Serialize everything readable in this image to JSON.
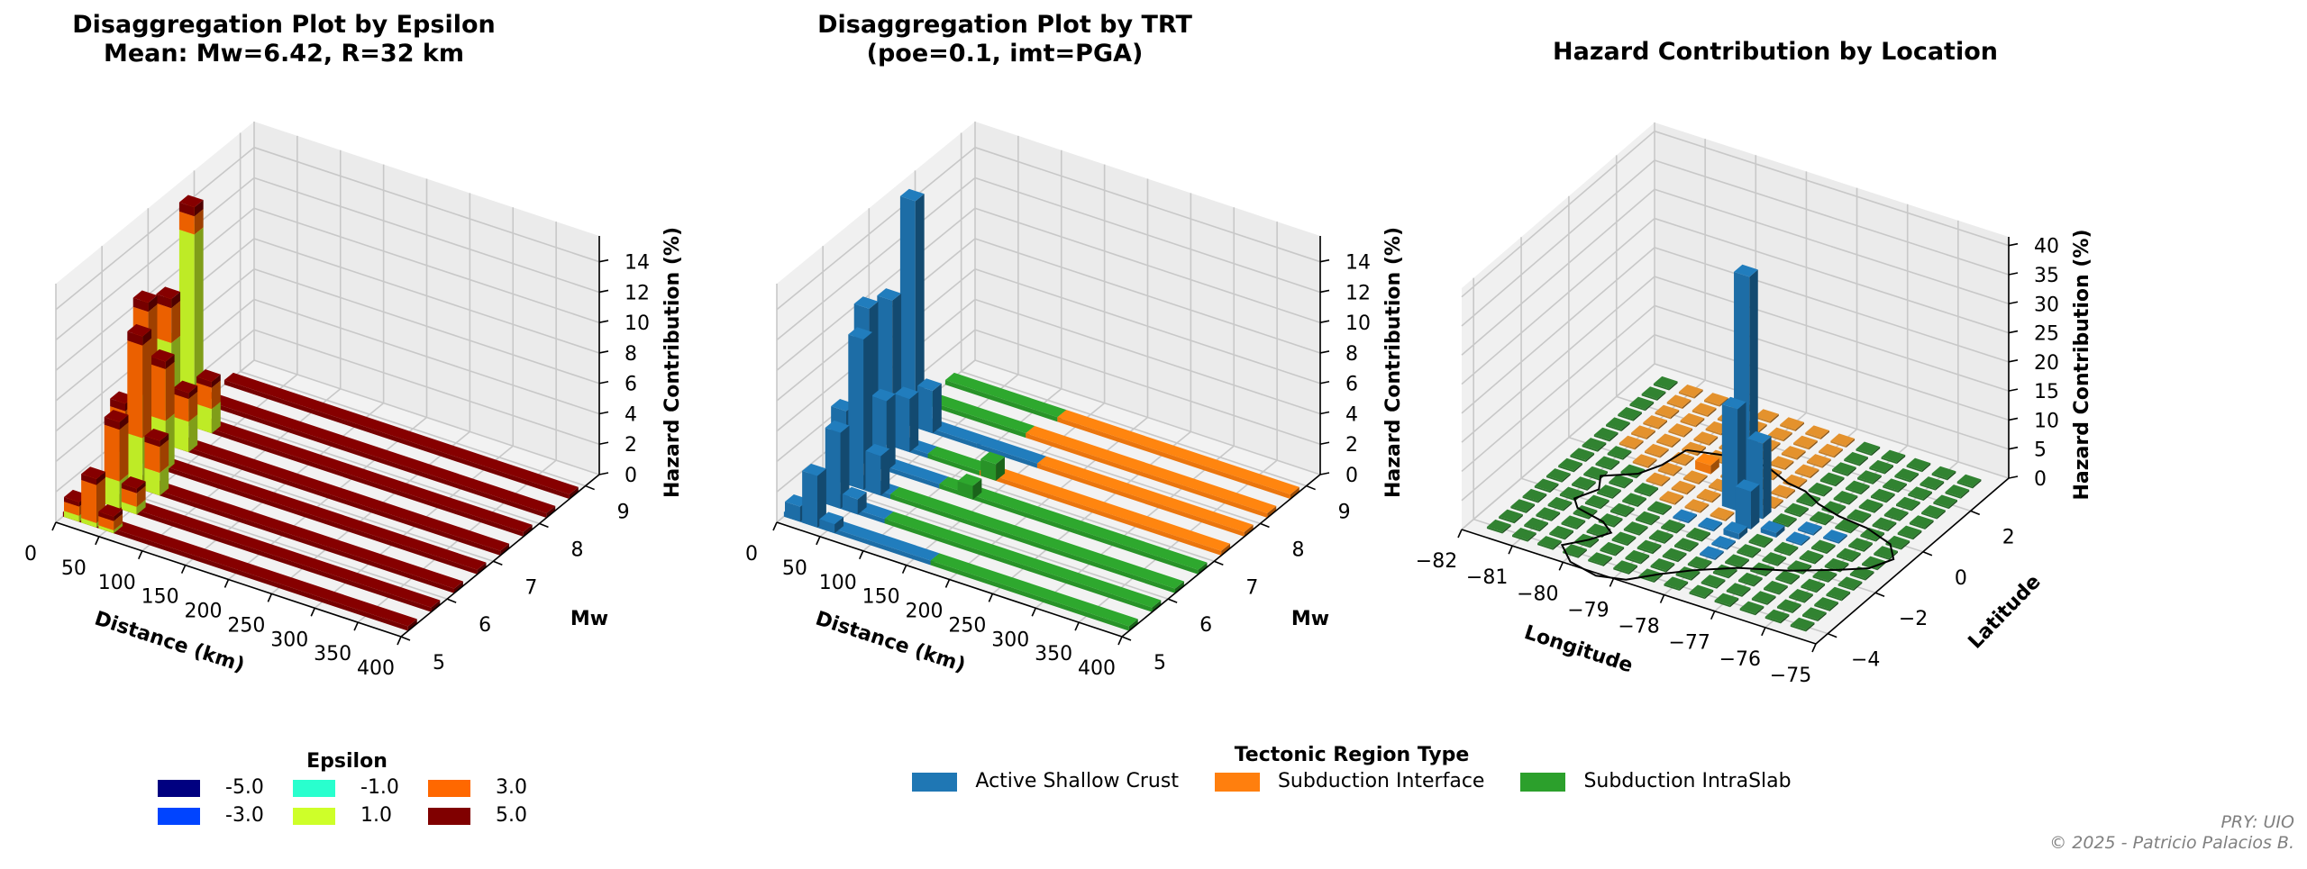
{
  "chart_data": [
    {
      "type": "bar3d",
      "title": "Disaggregation Plot by Epsilon",
      "subtitle": "Mean: Mw=6.42, R=32 km",
      "xlabel": "Distance (km)",
      "ylabel": "Mw",
      "zlabel": "Hazard Contribution (%)",
      "xticks": [
        "0",
        "50",
        "100",
        "150",
        "200",
        "250",
        "300",
        "350",
        "400"
      ],
      "yticks": [
        "5",
        "6",
        "7",
        "8",
        "9"
      ],
      "zticks": [
        "0",
        "2",
        "4",
        "6",
        "8",
        "10",
        "12",
        "14"
      ],
      "xlim": [
        0,
        400
      ],
      "ylim": [
        5,
        9.3
      ],
      "zlim": [
        0,
        15.7
      ],
      "legend_title": "Epsilon",
      "legend": [
        {
          "label": "-5.0",
          "color": "#000080"
        },
        {
          "label": "-3.0",
          "color": "#0044ff"
        },
        {
          "label": "-1.0",
          "color": "#29ffce"
        },
        {
          "label": "1.0",
          "color": "#ceff29"
        },
        {
          "label": "3.0",
          "color": "#ff6800"
        },
        {
          "label": "5.0",
          "color": "#800000"
        }
      ],
      "mw_rows": [
        5.25,
        5.75,
        6.25,
        6.75,
        7.25,
        7.75,
        8.25,
        8.75
      ],
      "bars": [
        {
          "r": 10,
          "mw": 5.25,
          "eps1": 0.4,
          "eps3": 0.6,
          "eps5": 0.3
        },
        {
          "r": 30,
          "mw": 5.25,
          "eps1": 0.3,
          "eps3": 2.5,
          "eps5": 0.4
        },
        {
          "r": 50,
          "mw": 5.25,
          "eps1": 0.2,
          "eps3": 0.6,
          "eps5": 0.3
        },
        {
          "r": 10,
          "mw": 5.75,
          "eps1": 0.6,
          "eps3": 0.4,
          "eps5": 0.3
        },
        {
          "r": 30,
          "mw": 5.75,
          "eps1": 1.8,
          "eps3": 3.4,
          "eps5": 0.5
        },
        {
          "r": 50,
          "mw": 5.75,
          "eps1": 0.5,
          "eps3": 0.9,
          "eps5": 0.3
        },
        {
          "r": 10,
          "mw": 6.25,
          "eps1": 2.0,
          "eps3": 2.8,
          "eps5": 0.5
        },
        {
          "r": 30,
          "mw": 6.25,
          "eps1": 3.4,
          "eps3": 6.1,
          "eps5": 0.6
        },
        {
          "r": 50,
          "mw": 6.25,
          "eps1": 1.5,
          "eps3": 1.7,
          "eps5": 0.4
        },
        {
          "r": 10,
          "mw": 6.75,
          "eps1": 4.5,
          "eps3": 5.6,
          "eps5": 0.6
        },
        {
          "r": 30,
          "mw": 6.75,
          "eps1": 3.3,
          "eps3": 3.4,
          "eps5": 0.5
        },
        {
          "r": 10,
          "mw": 7.25,
          "eps1": 6.8,
          "eps3": 2.3,
          "eps5": 0.6
        },
        {
          "r": 30,
          "mw": 7.25,
          "eps1": 2.0,
          "eps3": 1.5,
          "eps5": 0.4
        },
        {
          "r": 10,
          "mw": 7.75,
          "eps1": 12.7,
          "eps3": 1.2,
          "eps5": 0.6
        },
        {
          "r": 30,
          "mw": 7.75,
          "eps1": 1.6,
          "eps3": 1.4,
          "eps5": 0.4
        }
      ],
      "floor_value": 0.3
    },
    {
      "type": "bar3d",
      "title": "Disaggregation Plot by TRT",
      "subtitle": "(poe=0.1, imt=PGA)",
      "xlabel": "Distance (km)",
      "ylabel": "Mw",
      "zlabel": "Hazard Contribution (%)",
      "xticks": [
        "0",
        "50",
        "100",
        "150",
        "200",
        "250",
        "300",
        "350",
        "400"
      ],
      "yticks": [
        "5",
        "6",
        "7",
        "8",
        "9"
      ],
      "zticks": [
        "0",
        "2",
        "4",
        "6",
        "8",
        "10",
        "12",
        "14"
      ],
      "xlim": [
        0,
        400
      ],
      "ylim": [
        5,
        9.3
      ],
      "zlim": [
        0,
        15.7
      ],
      "legend_title": "Tectonic Region Type",
      "legend": [
        {
          "label": "Active Shallow Crust",
          "color": "#1f77b4"
        },
        {
          "label": "Subduction Interface",
          "color": "#ff7f0e"
        },
        {
          "label": "Subduction IntraSlab",
          "color": "#2ca02c"
        }
      ],
      "bars": [
        {
          "r": 10,
          "mw": 5.25,
          "trt": "Active Shallow Crust",
          "value": 1.0
        },
        {
          "r": 30,
          "mw": 5.25,
          "trt": "Active Shallow Crust",
          "value": 3.4
        },
        {
          "r": 50,
          "mw": 5.25,
          "trt": "Active Shallow Crust",
          "value": 0.6
        },
        {
          "r": 10,
          "mw": 5.75,
          "trt": "Active Shallow Crust",
          "value": 1.6
        },
        {
          "r": 30,
          "mw": 5.75,
          "trt": "Active Shallow Crust",
          "value": 5.0
        },
        {
          "r": 50,
          "mw": 5.75,
          "trt": "Active Shallow Crust",
          "value": 1.0
        },
        {
          "r": 10,
          "mw": 6.25,
          "trt": "Active Shallow Crust",
          "value": 4.8
        },
        {
          "r": 30,
          "mw": 6.25,
          "trt": "Active Shallow Crust",
          "value": 9.9
        },
        {
          "r": 50,
          "mw": 6.25,
          "trt": "Active Shallow Crust",
          "value": 2.6
        },
        {
          "r": 10,
          "mw": 6.75,
          "trt": "Active Shallow Crust",
          "value": 10.3
        },
        {
          "r": 30,
          "mw": 6.75,
          "trt": "Active Shallow Crust",
          "value": 4.6
        },
        {
          "r": 10,
          "mw": 7.25,
          "trt": "Active Shallow Crust",
          "value": 9.6
        },
        {
          "r": 30,
          "mw": 7.25,
          "trt": "Active Shallow Crust",
          "value": 3.5
        },
        {
          "r": 10,
          "mw": 7.75,
          "trt": "Active Shallow Crust",
          "value": 14.9
        },
        {
          "r": 30,
          "mw": 7.75,
          "trt": "Active Shallow Crust",
          "value": 2.8
        },
        {
          "r": 130,
          "mw": 6.75,
          "trt": "Subduction IntraSlab",
          "value": 0.9
        },
        {
          "r": 130,
          "mw": 7.25,
          "trt": "Subduction IntraSlab",
          "value": 1.1
        }
      ],
      "row_segments": [
        {
          "mw": 5.25,
          "segments": [
            {
              "from": 0,
              "to": 170,
              "trt": "Active Shallow Crust"
            },
            {
              "from": 170,
              "to": 400,
              "trt": "Subduction IntraSlab"
            }
          ]
        },
        {
          "mw": 5.75,
          "segments": [
            {
              "from": 0,
              "to": 90,
              "trt": "Active Shallow Crust"
            },
            {
              "from": 90,
              "to": 400,
              "trt": "Subduction IntraSlab"
            }
          ]
        },
        {
          "mw": 6.25,
          "segments": [
            {
              "from": 0,
              "to": 70,
              "trt": "Active Shallow Crust"
            },
            {
              "from": 70,
              "to": 400,
              "trt": "Subduction IntraSlab"
            }
          ]
        },
        {
          "mw": 6.75,
          "segments": [
            {
              "from": 0,
              "to": 100,
              "trt": "Active Shallow Crust"
            },
            {
              "from": 100,
              "to": 400,
              "trt": "Subduction IntraSlab"
            }
          ]
        },
        {
          "mw": 7.25,
          "segments": [
            {
              "from": 0,
              "to": 60,
              "trt": "Active Shallow Crust"
            },
            {
              "from": 60,
              "to": 120,
              "trt": "Subduction IntraSlab"
            },
            {
              "from": 120,
              "to": 400,
              "trt": "Subduction Interface"
            }
          ]
        },
        {
          "mw": 7.75,
          "segments": [
            {
              "from": 0,
              "to": 90,
              "trt": "Active Shallow Crust"
            },
            {
              "from": 90,
              "to": 160,
              "trt": "Active Shallow Crust"
            },
            {
              "from": 160,
              "to": 400,
              "trt": "Subduction Interface"
            }
          ]
        },
        {
          "mw": 8.25,
          "segments": [
            {
              "from": 0,
              "to": 120,
              "trt": "Subduction IntraSlab"
            },
            {
              "from": 120,
              "to": 400,
              "trt": "Subduction Interface"
            }
          ]
        },
        {
          "mw": 8.75,
          "segments": [
            {
              "from": 0,
              "to": 130,
              "trt": "Subduction IntraSlab"
            },
            {
              "from": 130,
              "to": 400,
              "trt": "Subduction Interface"
            }
          ]
        }
      ],
      "floor_value": 0.3
    },
    {
      "type": "bar3d",
      "title": "Hazard Contribution by Location",
      "xlabel": "Longitude",
      "ylabel": "Latitude",
      "zlabel": "Hazard Contribution (%)",
      "xticks": [
        "−82",
        "−81",
        "−80",
        "−79",
        "−78",
        "−77",
        "−76",
        "−75"
      ],
      "yticks": [
        "−4",
        "−2",
        "0",
        "2"
      ],
      "zticks": [
        "0",
        "5",
        "10",
        "15",
        "20",
        "25",
        "30",
        "35",
        "40"
      ],
      "xlim": [
        -82,
        -75
      ],
      "ylim": [
        -4.5,
        3.6
      ],
      "zlim": [
        0,
        41.5
      ],
      "grid_lon": [
        -81.5,
        -75.5
      ],
      "grid_lat": [
        -4.0,
        3.0
      ],
      "grid_step": 0.5,
      "peaks": [
        {
          "lon": -78.5,
          "lat": 0.0,
          "trt": "Active Shallow Crust",
          "value": 38.5
        },
        {
          "lon": -78.5,
          "lat": -0.5,
          "trt": "Active Shallow Crust",
          "value": 17.5
        },
        {
          "lon": -78.0,
          "lat": -0.5,
          "trt": "Active Shallow Crust",
          "value": 13.0
        },
        {
          "lon": -78.0,
          "lat": -1.0,
          "trt": "Active Shallow Crust",
          "value": 6.5
        },
        {
          "lon": -78.0,
          "lat": -1.5,
          "trt": "Active Shallow Crust",
          "value": 1.0
        },
        {
          "lon": -77.5,
          "lat": -1.0,
          "trt": "Active Shallow Crust",
          "value": 0.8
        },
        {
          "lon": -79.5,
          "lat": 0.5,
          "trt": "Subduction Interface",
          "value": 1.5
        }
      ],
      "active_cells": [
        [
          -79.0,
          -1.5
        ],
        [
          -78.5,
          -1.5
        ],
        [
          -78.0,
          -2.0
        ],
        [
          -77.0,
          -1.0
        ],
        [
          -76.5,
          -0.5
        ],
        [
          -77.0,
          -0.5
        ],
        [
          -78.0,
          -2.5
        ]
      ],
      "interface_region": {
        "lon": [
          -81.0,
          -78.0
        ],
        "lat": [
          -1.0,
          3.0
        ]
      },
      "floor_value": 0.3,
      "boundary": "Ecuador outline"
    }
  ],
  "credit": {
    "line1": "PRY: UIO",
    "line2": "© 2025 - Patricio Palacios B."
  }
}
